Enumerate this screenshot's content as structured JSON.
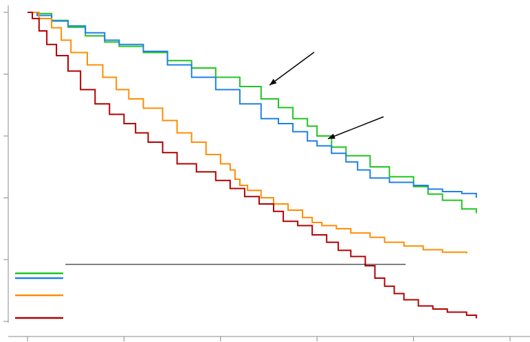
{
  "chart_data": {
    "type": "line",
    "title": "",
    "xlabel": "",
    "ylabel": "",
    "xlim": [
      0,
      5
    ],
    "ylim": [
      0.5,
      1.0
    ],
    "x_ticks": [
      0,
      1,
      2,
      3,
      4,
      5
    ],
    "y_ticks": [
      0.5,
      0.6,
      0.7,
      0.8,
      0.9,
      1.0
    ],
    "grid": false,
    "legend_placement": "bottom-left",
    "colors": {
      "green": "#1fc41f",
      "blue": "#1f7fe6",
      "orange": "#ff8c00",
      "red": "#b00000",
      "arrow": "#000000"
    },
    "legend_entries": [
      {
        "series": [
          "green",
          "blue"
        ]
      },
      {
        "series": [
          "orange"
        ]
      },
      {
        "series": [
          "red"
        ]
      }
    ],
    "series": [
      {
        "color": "green",
        "x": [
          0,
          0.1,
          0.25,
          0.42,
          0.6,
          0.8,
          0.95,
          1.2,
          1.45,
          1.7,
          1.95,
          2.2,
          2.42,
          2.6,
          2.75,
          2.9,
          3.0,
          3.15,
          3.3,
          3.55,
          3.75,
          4.0,
          4.15,
          4.3,
          4.5,
          4.65
        ],
        "y": [
          1.0,
          0.998,
          0.987,
          0.976,
          0.962,
          0.952,
          0.945,
          0.935,
          0.922,
          0.91,
          0.895,
          0.88,
          0.86,
          0.846,
          0.828,
          0.816,
          0.8,
          0.782,
          0.768,
          0.75,
          0.734,
          0.718,
          0.706,
          0.696,
          0.682,
          0.675
        ]
      },
      {
        "color": "blue",
        "x": [
          0,
          0.1,
          0.25,
          0.42,
          0.6,
          0.8,
          0.95,
          1.2,
          1.45,
          1.7,
          1.95,
          2.2,
          2.42,
          2.6,
          2.75,
          2.9,
          3.0,
          3.15,
          3.3,
          3.42,
          3.55,
          3.75,
          4.0,
          4.15,
          4.3,
          4.5,
          4.65
        ],
        "y": [
          1.0,
          0.995,
          0.986,
          0.978,
          0.967,
          0.955,
          0.948,
          0.937,
          0.915,
          0.895,
          0.875,
          0.852,
          0.828,
          0.82,
          0.807,
          0.792,
          0.784,
          0.772,
          0.758,
          0.745,
          0.732,
          0.725,
          0.72,
          0.714,
          0.71,
          0.707,
          0.7
        ]
      },
      {
        "color": "orange",
        "x": [
          0,
          0.12,
          0.25,
          0.35,
          0.45,
          0.62,
          0.78,
          0.92,
          1.05,
          1.2,
          1.4,
          1.55,
          1.7,
          1.85,
          2.0,
          2.1,
          2.15,
          2.2,
          2.28,
          2.42,
          2.55,
          2.7,
          2.85,
          2.95,
          3.05,
          3.2,
          3.35,
          3.55,
          3.7,
          3.9,
          4.1,
          4.3,
          4.55
        ],
        "y": [
          1.0,
          0.99,
          0.975,
          0.955,
          0.935,
          0.915,
          0.895,
          0.875,
          0.86,
          0.845,
          0.825,
          0.805,
          0.79,
          0.77,
          0.755,
          0.745,
          0.73,
          0.72,
          0.712,
          0.7,
          0.69,
          0.68,
          0.668,
          0.66,
          0.655,
          0.65,
          0.643,
          0.636,
          0.628,
          0.622,
          0.616,
          0.612,
          0.61
        ]
      },
      {
        "color": "red",
        "x": [
          0,
          0.05,
          0.12,
          0.2,
          0.3,
          0.42,
          0.55,
          0.7,
          0.85,
          1.0,
          1.12,
          1.25,
          1.4,
          1.55,
          1.75,
          1.95,
          2.1,
          2.25,
          2.4,
          2.55,
          2.65,
          2.8,
          2.95,
          3.1,
          3.22,
          3.35,
          3.5,
          3.6,
          3.7,
          3.8,
          3.9,
          4.05,
          4.2,
          4.35,
          4.55,
          4.65
        ],
        "y": [
          1.0,
          0.99,
          0.97,
          0.948,
          0.93,
          0.905,
          0.875,
          0.852,
          0.835,
          0.82,
          0.805,
          0.79,
          0.773,
          0.755,
          0.742,
          0.728,
          0.715,
          0.702,
          0.69,
          0.678,
          0.662,
          0.655,
          0.64,
          0.628,
          0.615,
          0.605,
          0.59,
          0.57,
          0.557,
          0.545,
          0.535,
          0.525,
          0.52,
          0.515,
          0.51,
          0.505
        ]
      }
    ]
  }
}
